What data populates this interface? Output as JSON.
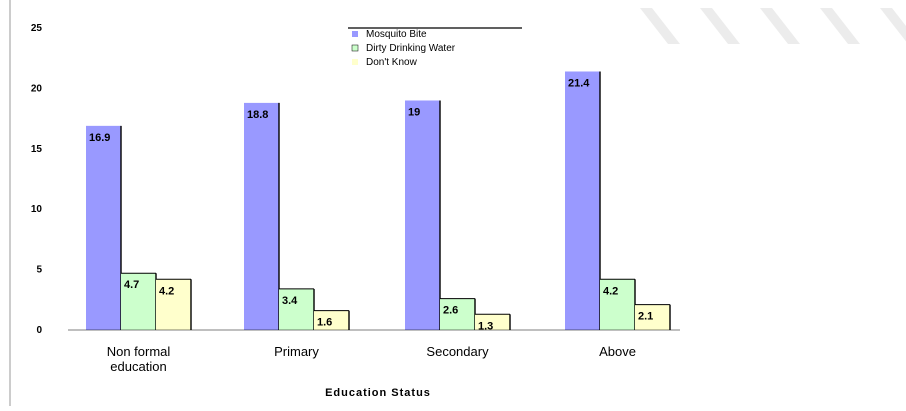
{
  "chart_data": {
    "type": "bar",
    "categories": [
      "Non formal education",
      "Primary",
      "Secondary",
      "Above"
    ],
    "category_lines": [
      [
        "Non formal",
        "education"
      ],
      [
        "Primary"
      ],
      [
        "Secondary"
      ],
      [
        "Above"
      ]
    ],
    "series": [
      {
        "name": "Mosquito Bite",
        "values": [
          16.9,
          18.8,
          19,
          21.4
        ],
        "color": "#9999ff"
      },
      {
        "name": "Dirty Drinking Water",
        "values": [
          4.7,
          3.4,
          2.6,
          4.2
        ],
        "color": "#ccffcc"
      },
      {
        "name": "Don't Know",
        "values": [
          4.2,
          1.6,
          1.3,
          2.1
        ],
        "color": "#ffffcc"
      }
    ],
    "xlabel": "Education Status",
    "ylabel": "",
    "title": "",
    "ylim": [
      0,
      25
    ],
    "yticks": [
      0,
      5,
      10,
      15,
      20,
      25
    ],
    "ytick_labels": [
      "0",
      "5",
      "10",
      "15",
      "20",
      "25"
    ],
    "legend_position": "top-center",
    "grid": false
  }
}
